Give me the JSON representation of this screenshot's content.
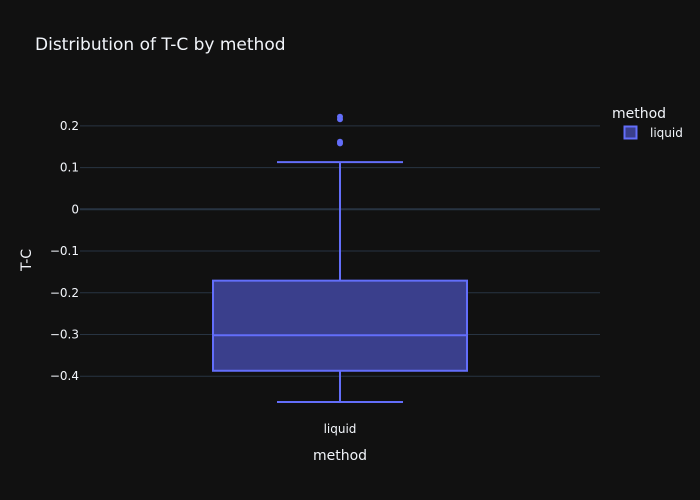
{
  "chart_data": {
    "type": "box",
    "title": "Distribution of T-C by method",
    "xlabel": "method",
    "ylabel": "T-C",
    "categories": [
      "liquid"
    ],
    "ylim": [
      -0.505,
      0.262
    ],
    "yticks": [
      {
        "value": 0.2,
        "label": "0.2"
      },
      {
        "value": 0.1,
        "label": "0.1"
      },
      {
        "value": 0,
        "label": "0"
      },
      {
        "value": -0.1,
        "label": "−0.1"
      },
      {
        "value": -0.2,
        "label": "−0.2"
      },
      {
        "value": -0.3,
        "label": "−0.3"
      },
      {
        "value": -0.4,
        "label": "−0.4"
      }
    ],
    "grid": true,
    "legend": {
      "title": "method",
      "position": "top-right",
      "entries": [
        "liquid"
      ]
    },
    "series": [
      {
        "name": "liquid",
        "category": "liquid",
        "min": -0.462,
        "q1": -0.387,
        "median": -0.302,
        "q3": -0.171,
        "max": 0.113,
        "outliers": [
          0.162,
          0.158,
          0.222,
          0.216
        ],
        "color": "#636efa",
        "fill": "#3a3f8c"
      }
    ]
  }
}
